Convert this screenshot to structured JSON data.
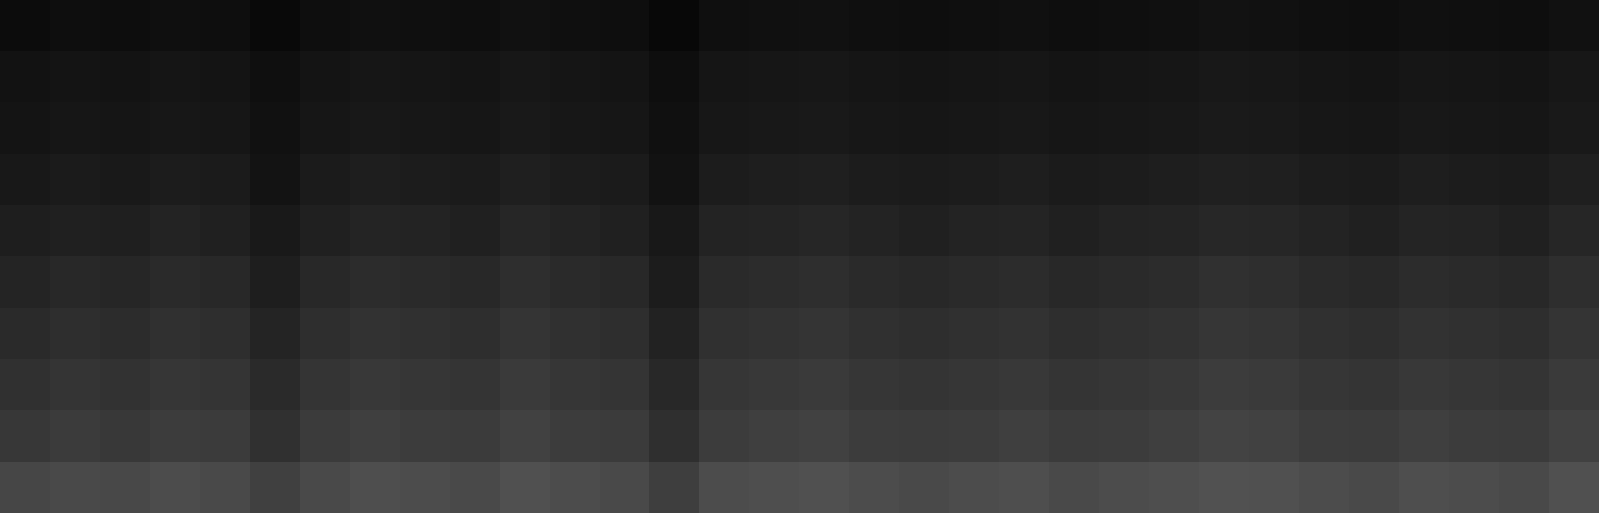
{
  "chart_data": {
    "type": "heatmap",
    "tick_labels": false,
    "color": "gray",
    "color_range": [
      0,
      255
    ],
    "cells": [
      [
        12,
        14,
        13,
        15,
        14,
        9,
        14,
        16,
        15,
        14,
        17,
        15,
        14,
        8,
        15,
        16,
        17,
        15,
        14,
        15,
        16,
        14,
        15,
        16,
        18,
        17,
        15,
        14,
        16,
        15,
        14,
        17
      ],
      [
        18,
        20,
        19,
        21,
        20,
        15,
        20,
        22,
        21,
        20,
        23,
        21,
        20,
        14,
        21,
        22,
        23,
        21,
        20,
        21,
        22,
        20,
        21,
        22,
        24,
        23,
        21,
        20,
        22,
        21,
        20,
        23
      ],
      [
        20,
        22,
        21,
        23,
        22,
        17,
        22,
        24,
        23,
        22,
        25,
        23,
        22,
        16,
        23,
        24,
        25,
        23,
        22,
        23,
        24,
        22,
        23,
        24,
        26,
        25,
        23,
        22,
        24,
        23,
        22,
        25
      ],
      [
        24,
        27,
        25,
        28,
        27,
        19,
        27,
        30,
        28,
        27,
        31,
        28,
        27,
        18,
        28,
        30,
        31,
        28,
        27,
        28,
        30,
        27,
        28,
        30,
        33,
        31,
        28,
        27,
        30,
        28,
        27,
        31
      ],
      [
        30,
        33,
        31,
        35,
        33,
        25,
        33,
        36,
        35,
        33,
        38,
        35,
        33,
        24,
        35,
        36,
        38,
        35,
        33,
        35,
        36,
        33,
        35,
        36,
        39,
        38,
        35,
        33,
        36,
        35,
        33,
        38
      ],
      [
        36,
        40,
        38,
        42,
        40,
        30,
        40,
        44,
        42,
        40,
        46,
        42,
        40,
        28,
        42,
        44,
        46,
        42,
        40,
        42,
        44,
        40,
        42,
        44,
        48,
        46,
        42,
        40,
        44,
        42,
        40,
        46
      ],
      [
        42,
        46,
        44,
        48,
        46,
        36,
        46,
        50,
        48,
        46,
        52,
        48,
        46,
        34,
        48,
        50,
        52,
        48,
        46,
        48,
        50,
        46,
        48,
        50,
        54,
        52,
        48,
        46,
        50,
        48,
        46,
        52
      ],
      [
        48,
        52,
        50,
        54,
        52,
        42,
        52,
        56,
        54,
        52,
        58,
        54,
        52,
        40,
        54,
        56,
        58,
        54,
        52,
        54,
        56,
        52,
        54,
        56,
        60,
        58,
        54,
        52,
        56,
        54,
        52,
        58
      ],
      [
        55,
        59,
        57,
        61,
        59,
        49,
        59,
        63,
        61,
        59,
        65,
        61,
        59,
        47,
        61,
        63,
        65,
        61,
        59,
        61,
        63,
        59,
        61,
        63,
        67,
        65,
        61,
        59,
        63,
        61,
        59,
        65
      ],
      [
        70,
        74,
        72,
        76,
        74,
        64,
        74,
        78,
        76,
        74,
        80,
        76,
        74,
        62,
        76,
        78,
        80,
        76,
        74,
        76,
        78,
        74,
        76,
        78,
        82,
        80,
        76,
        74,
        78,
        76,
        74,
        80
      ]
    ]
  }
}
